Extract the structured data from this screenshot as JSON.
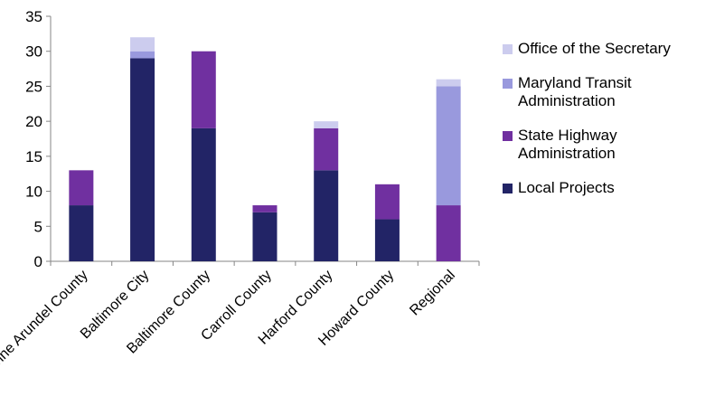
{
  "chart_data": {
    "type": "bar",
    "stacked": true,
    "categories": [
      "Anne Arundel County",
      "Baltimore City",
      "Baltimore County",
      "Carroll County",
      "Harford County",
      "Howard County",
      "Regional"
    ],
    "series": [
      {
        "name": "Local Projects",
        "color": "#222466",
        "values": [
          8,
          29,
          19,
          7,
          13,
          6,
          0
        ]
      },
      {
        "name": "State Highway Administration",
        "color": "#7030A0",
        "values": [
          5,
          0,
          11,
          1,
          6,
          5,
          8
        ]
      },
      {
        "name": "Maryland Transit Administration",
        "color": "#9999DD",
        "values": [
          0,
          1,
          0,
          0,
          0,
          0,
          17
        ]
      },
      {
        "name": "Office of the Secretary",
        "color": "#CCCCEE",
        "values": [
          0,
          2,
          0,
          0,
          1,
          0,
          1
        ]
      }
    ],
    "title": "",
    "xlabel": "",
    "ylabel": "",
    "ylim": [
      0,
      35
    ],
    "yticks": [
      0,
      5,
      10,
      15,
      20,
      25,
      30,
      35
    ],
    "grid": false,
    "legend_position": "right"
  },
  "legend": {
    "items": [
      {
        "label": "Office of the Secretary",
        "color": "#CCCCEE"
      },
      {
        "label": "Maryland Transit Administration",
        "color": "#9999DD"
      },
      {
        "label": "State Highway Administration",
        "color": "#7030A0"
      },
      {
        "label": "Local Projects",
        "color": "#222466"
      }
    ]
  }
}
